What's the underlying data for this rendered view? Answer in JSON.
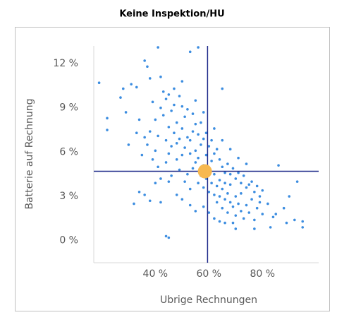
{
  "chart_data": {
    "type": "scatter",
    "title": "Keine Inspektion/HU",
    "x_label": "Ubrige Rechnungen",
    "y_label": "Batterie auf Rechnung",
    "xlim": [
      17,
      101
    ],
    "ylim": [
      -1.5,
      13.2
    ],
    "xticks": [
      {
        "value": 40,
        "label": "40 %"
      },
      {
        "value": 60,
        "label": "60 %"
      },
      {
        "value": 80,
        "label": "80 %"
      }
    ],
    "yticks": [
      {
        "value": 0,
        "label": "0 %"
      },
      {
        "value": 3,
        "label": "3 %"
      },
      {
        "value": 6,
        "label": "6 %"
      },
      {
        "value": 9,
        "label": "9 %"
      },
      {
        "value": 12,
        "label": "12 %"
      }
    ],
    "color": "#3c8de0",
    "x": [
      19,
      22,
      22,
      27,
      28,
      29,
      31,
      33,
      30,
      36,
      37,
      38,
      41,
      45,
      44,
      53,
      56,
      65,
      32,
      34,
      36,
      38,
      40,
      42,
      86,
      93,
      95,
      95,
      92,
      89,
      85,
      83,
      77,
      70,
      66,
      40,
      41,
      42,
      43,
      44,
      44,
      45,
      45,
      46,
      46,
      47,
      47,
      48,
      48,
      49,
      49,
      50,
      50,
      51,
      51,
      52,
      52,
      53,
      53,
      54,
      54,
      55,
      55,
      56,
      56,
      57,
      57,
      58,
      58,
      59,
      59,
      60,
      60,
      61,
      61,
      62,
      62,
      63,
      63,
      64,
      64,
      65,
      65,
      66,
      66,
      67,
      67,
      68,
      68,
      69,
      70,
      70,
      71,
      72,
      72,
      73,
      74,
      75,
      76,
      77,
      78,
      80,
      79,
      82,
      84,
      88,
      90,
      38,
      39,
      40,
      41,
      42,
      43,
      44,
      45,
      46,
      47,
      48,
      49,
      50,
      51,
      52,
      53,
      54,
      55,
      56,
      57,
      58,
      59,
      60,
      61,
      62,
      63,
      64,
      65,
      66,
      67,
      68,
      69,
      70,
      71,
      72,
      73,
      74,
      75,
      76,
      77,
      78,
      79,
      80,
      35,
      36,
      37,
      34,
      33,
      39,
      42,
      45,
      48,
      50,
      53,
      55,
      58,
      60,
      62,
      50,
      55,
      58,
      62,
      65,
      68,
      71,
      74,
      64,
      69
    ],
    "values": [
      10.7,
      8.3,
      7.5,
      9.7,
      10.3,
      8.7,
      10.6,
      10.4,
      6.5,
      12.2,
      11.8,
      11.0,
      13.1,
      0.2,
      0.3,
      12.8,
      13.1,
      10.3,
      2.5,
      3.3,
      3.1,
      2.7,
      3.9,
      2.6,
      5.1,
      4.0,
      1.3,
      0.9,
      1.4,
      1.2,
      1.8,
      0.9,
      0.8,
      0.8,
      1.2,
      8.2,
      7.1,
      9.0,
      8.5,
      6.8,
      9.6,
      7.7,
      5.9,
      8.8,
      6.4,
      7.3,
      9.2,
      5.5,
      8.0,
      6.9,
      4.8,
      7.6,
      5.8,
      6.3,
      8.4,
      4.5,
      7.0,
      5.9,
      6.8,
      4.9,
      7.4,
      5.3,
      6.1,
      3.9,
      5.6,
      4.4,
      6.5,
      3.6,
      5.1,
      4.2,
      5.8,
      3.3,
      4.7,
      3.9,
      5.4,
      3.1,
      4.5,
      3.7,
      2.6,
      4.1,
      3.0,
      3.5,
      2.2,
      3.9,
      2.8,
      3.2,
      1.9,
      2.6,
      3.8,
      2.3,
      3.0,
      1.7,
      2.5,
      2.0,
      3.2,
      1.5,
      2.4,
      1.9,
      2.8,
      1.4,
      2.2,
      1.8,
      3.0,
      2.5,
      1.6,
      2.2,
      3.0,
      7.4,
      9.4,
      6.1,
      5.0,
      4.2,
      10.1,
      5.3,
      9.9,
      4.4,
      10.3,
      6.6,
      9.8,
      9.1,
      4.0,
      8.9,
      3.5,
      8.6,
      7.9,
      7.2,
      8.0,
      6.9,
      7.3,
      6.4,
      6.8,
      5.9,
      6.2,
      5.5,
      5.0,
      4.6,
      5.2,
      4.5,
      4.9,
      4.2,
      4.6,
      3.9,
      4.4,
      3.6,
      3.8,
      4.0,
      3.3,
      3.7,
      2.6,
      3.4,
      5.8,
      7.0,
      6.5,
      8.2,
      7.3,
      5.5,
      11.1,
      4.0,
      3.1,
      2.8,
      2.4,
      2.0,
      2.3,
      1.9,
      1.5,
      10.8,
      9.5,
      8.7,
      7.6,
      6.8,
      6.2,
      5.6,
      5.2,
      1.3,
      1.2
    ],
    "highlight": {
      "x": 58.5,
      "y": 4.7,
      "color": "#f7b84f"
    },
    "reference_lines": {
      "x": 59.5,
      "y": 4.7,
      "color": "#1f2a8a"
    }
  }
}
